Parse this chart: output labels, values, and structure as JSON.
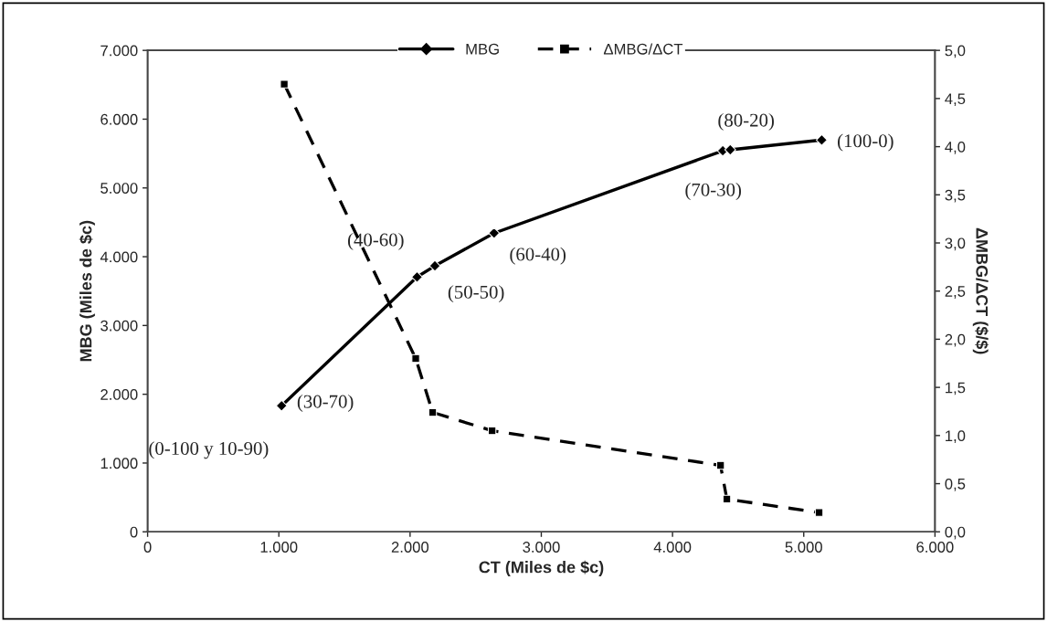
{
  "chart_data": {
    "type": "line",
    "xlabel": "CT (Miles de $c)",
    "ylabel": "MBG (Miles de $c)",
    "y2label": "ΔMBG/ΔCT ($/$)",
    "xlim": [
      0,
      6000
    ],
    "xticks": [
      {
        "value": 0,
        "label": "0"
      },
      {
        "value": 1000,
        "label": "1.000"
      },
      {
        "value": 2000,
        "label": "2.000"
      },
      {
        "value": 3000,
        "label": "3.000"
      },
      {
        "value": 4000,
        "label": "4.000"
      },
      {
        "value": 5000,
        "label": "5.000"
      },
      {
        "value": 6000,
        "label": "6.000"
      }
    ],
    "ylim": [
      0,
      7000
    ],
    "yticks": [
      {
        "value": 0,
        "label": "0"
      },
      {
        "value": 1000,
        "label": "1.000"
      },
      {
        "value": 2000,
        "label": "2.000"
      },
      {
        "value": 3000,
        "label": "3.000"
      },
      {
        "value": 4000,
        "label": "4.000"
      },
      {
        "value": 5000,
        "label": "5.000"
      },
      {
        "value": 6000,
        "label": "6.000"
      },
      {
        "value": 7000,
        "label": "7.000"
      }
    ],
    "y2lim": [
      0,
      5
    ],
    "y2ticks": [
      {
        "value": 0,
        "label": "0,0"
      },
      {
        "value": 0.5,
        "label": "0,5"
      },
      {
        "value": 1,
        "label": "1,0"
      },
      {
        "value": 1.5,
        "label": "1,5"
      },
      {
        "value": 2,
        "label": "2,0"
      },
      {
        "value": 2.5,
        "label": "2,5"
      },
      {
        "value": 3,
        "label": "3,0"
      },
      {
        "value": 3.5,
        "label": "3,5"
      },
      {
        "value": 4,
        "label": "4,0"
      },
      {
        "value": 4.5,
        "label": "4,5"
      },
      {
        "value": 5,
        "label": "5,0"
      }
    ],
    "series": [
      {
        "name": "MBG",
        "color": "#000000",
        "marker": "diamond",
        "line_style": "solid",
        "x": [
          1021,
          2053,
          2189,
          2640,
          4383,
          4440,
          5137
        ],
        "values": [
          1833,
          3705,
          3867,
          4343,
          5540,
          5555,
          5697
        ]
      },
      {
        "name": "ΔMBG/ΔCT",
        "color": "#000000",
        "marker": "square",
        "line_style": "dashed",
        "axis": "y2",
        "x": [
          1041,
          2043,
          2172,
          2625,
          4366,
          4414,
          5117
        ],
        "values": [
          4.65,
          1.8,
          1.24,
          1.05,
          0.69,
          0.34,
          0.2
        ]
      }
    ],
    "annotations": [
      {
        "text": "(0-100 y 10-90)",
        "x": 1021,
        "y": 1833
      },
      {
        "text": "(30-70)",
        "x": 1021,
        "y": 1833
      },
      {
        "text": "(40-60)",
        "x": 2053,
        "y": 3705
      },
      {
        "text": "(50-50)",
        "x": 2189,
        "y": 3867
      },
      {
        "text": "(60-40)",
        "x": 2640,
        "y": 4343
      },
      {
        "text": "(70-30)",
        "x": 4383,
        "y": 5540
      },
      {
        "text": "(80-20)",
        "x": 4440,
        "y": 5555
      },
      {
        "text": "(100-0)",
        "x": 5137,
        "y": 5697
      }
    ],
    "legend": "top",
    "grid": false
  }
}
